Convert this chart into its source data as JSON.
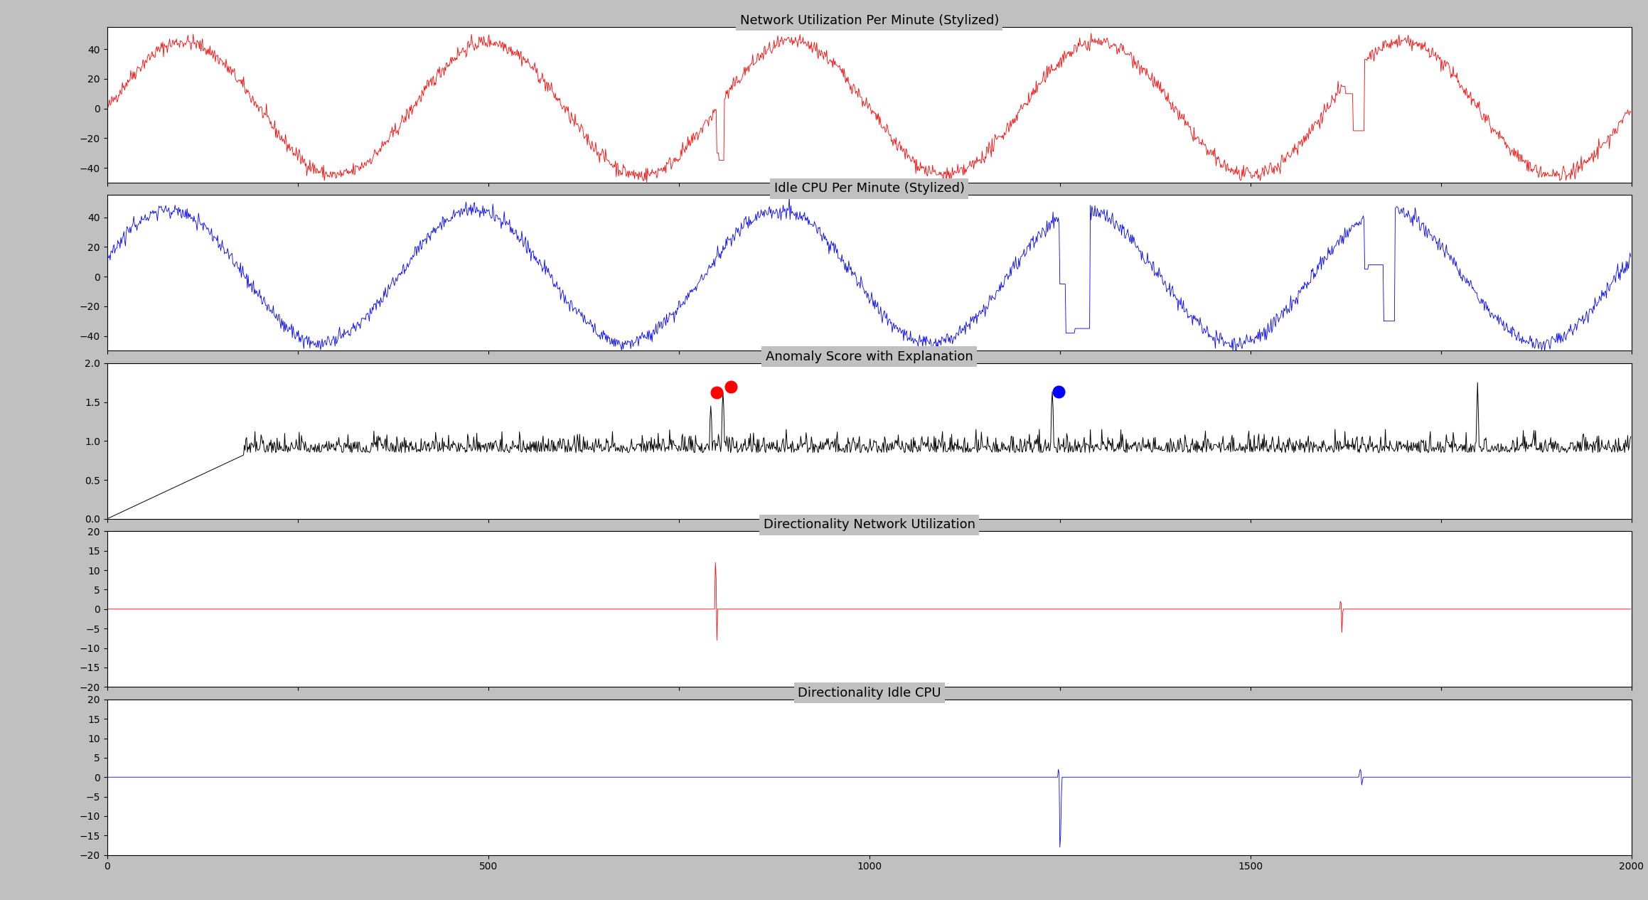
{
  "title1": "Network Utilization Per Minute (Stylized)",
  "title2": "Idle CPU Per Minute (Stylized)",
  "title3": "Anomaly Score with Explanation",
  "title4": "Directionality Network Utilization",
  "title5": "Directionality Idle CPU",
  "xlim": [
    0,
    2000
  ],
  "color1": "red",
  "color2": "blue",
  "color3": "black",
  "bg_color": "#c0c0c0",
  "plot_bg": "white",
  "n_points": 2000,
  "amplitude": 45,
  "period": 400,
  "noise_std": 2.5,
  "anomaly_net_x": 800,
  "anomaly_cpu_x1": 1250,
  "anomaly_cpu_x2": 1650,
  "anomaly_net_x2": 1620,
  "ylim1": [
    -50,
    55
  ],
  "ylim2": [
    -50,
    55
  ],
  "ylim3": [
    0.0,
    2.0
  ],
  "ylim4": [
    -20,
    20
  ],
  "ylim5": [
    -20,
    20
  ],
  "yticks1": [
    -40,
    -20,
    0,
    20,
    40
  ],
  "yticks2": [
    -40,
    -20,
    0,
    20,
    40
  ],
  "yticks3": [
    0.0,
    0.5,
    1.0,
    1.5,
    2.0
  ],
  "yticks4": [
    -20,
    -15,
    -10,
    -5,
    0,
    5,
    10,
    15,
    20
  ],
  "yticks5": [
    -20,
    -15,
    -10,
    -5,
    0,
    5,
    10,
    15,
    20
  ]
}
